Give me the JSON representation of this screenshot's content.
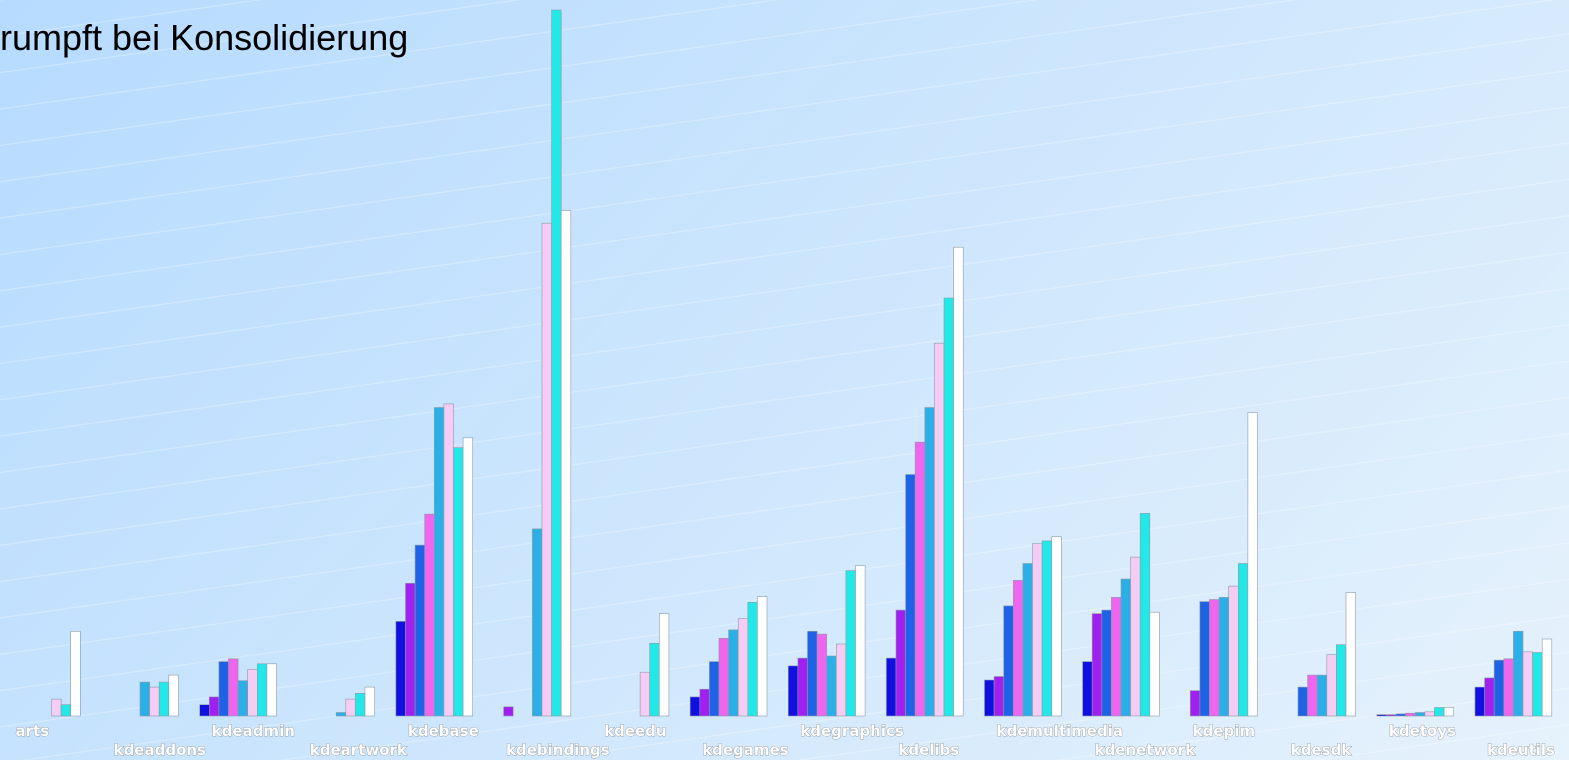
{
  "chart_data": {
    "type": "bar",
    "title": "rumpft bei Konsolidierung",
    "xlabel": "",
    "ylabel": "",
    "ylim": [
      0,
      100
    ],
    "grid": false,
    "legend": "none",
    "categories": [
      "arts",
      "kdeaddons",
      "kdeadmin",
      "kdeartwork",
      "kdebase",
      "kdebindings",
      "kdeedu",
      "kdegames",
      "kdegraphics",
      "kdelibs",
      "kdemultimedia",
      "kdenetwork",
      "kdepim",
      "kdesdk",
      "kdetoys",
      "kdeutils"
    ],
    "series": [
      {
        "color": "#1010e0",
        "values": [
          0,
          0,
          1.6,
          0,
          13.4,
          0,
          0,
          2.7,
          7.1,
          8.2,
          5.1,
          7.7,
          0,
          0,
          0.2,
          4.1
        ]
      },
      {
        "color": "#a020f0",
        "values": [
          0,
          0,
          2.7,
          0,
          18.8,
          1.3,
          0,
          3.8,
          8.2,
          15.0,
          5.6,
          14.5,
          3.6,
          0,
          0.2,
          5.4
        ]
      },
      {
        "color": "#1e63e6",
        "values": [
          0,
          0,
          7.7,
          0,
          24.2,
          0,
          0,
          7.7,
          12.0,
          34.2,
          15.6,
          15.0,
          16.2,
          4.1,
          0.3,
          7.9
        ]
      },
      {
        "color": "#ee66ee",
        "values": [
          0,
          0,
          8.1,
          0,
          28.6,
          0,
          0,
          11.0,
          11.6,
          38.8,
          19.2,
          16.8,
          16.5,
          5.8,
          0.4,
          8.1
        ]
      },
      {
        "color": "#2ab0e6",
        "values": [
          0,
          4.8,
          5.0,
          0.5,
          43.7,
          26.5,
          0,
          12.2,
          8.5,
          43.7,
          21.6,
          19.4,
          16.8,
          5.8,
          0.5,
          12.0
        ]
      },
      {
        "color": "#f4ccf4",
        "values": [
          2.4,
          4.1,
          6.6,
          2.4,
          44.2,
          69.8,
          6.2,
          13.8,
          10.2,
          52.8,
          24.4,
          22.5,
          18.4,
          8.7,
          0.6,
          9.1
        ]
      },
      {
        "color": "#22e8e8",
        "values": [
          1.6,
          4.8,
          7.4,
          3.2,
          38.0,
          100,
          10.3,
          16.1,
          20.6,
          59.2,
          24.8,
          28.7,
          21.6,
          10.1,
          1.2,
          9.0
        ]
      },
      {
        "color": "#ffffff",
        "values": [
          12.0,
          5.8,
          7.4,
          4.1,
          39.4,
          71.6,
          14.5,
          16.9,
          21.3,
          66.4,
          25.4,
          14.7,
          43.0,
          17.5,
          1.2,
          10.9
        ]
      }
    ]
  }
}
